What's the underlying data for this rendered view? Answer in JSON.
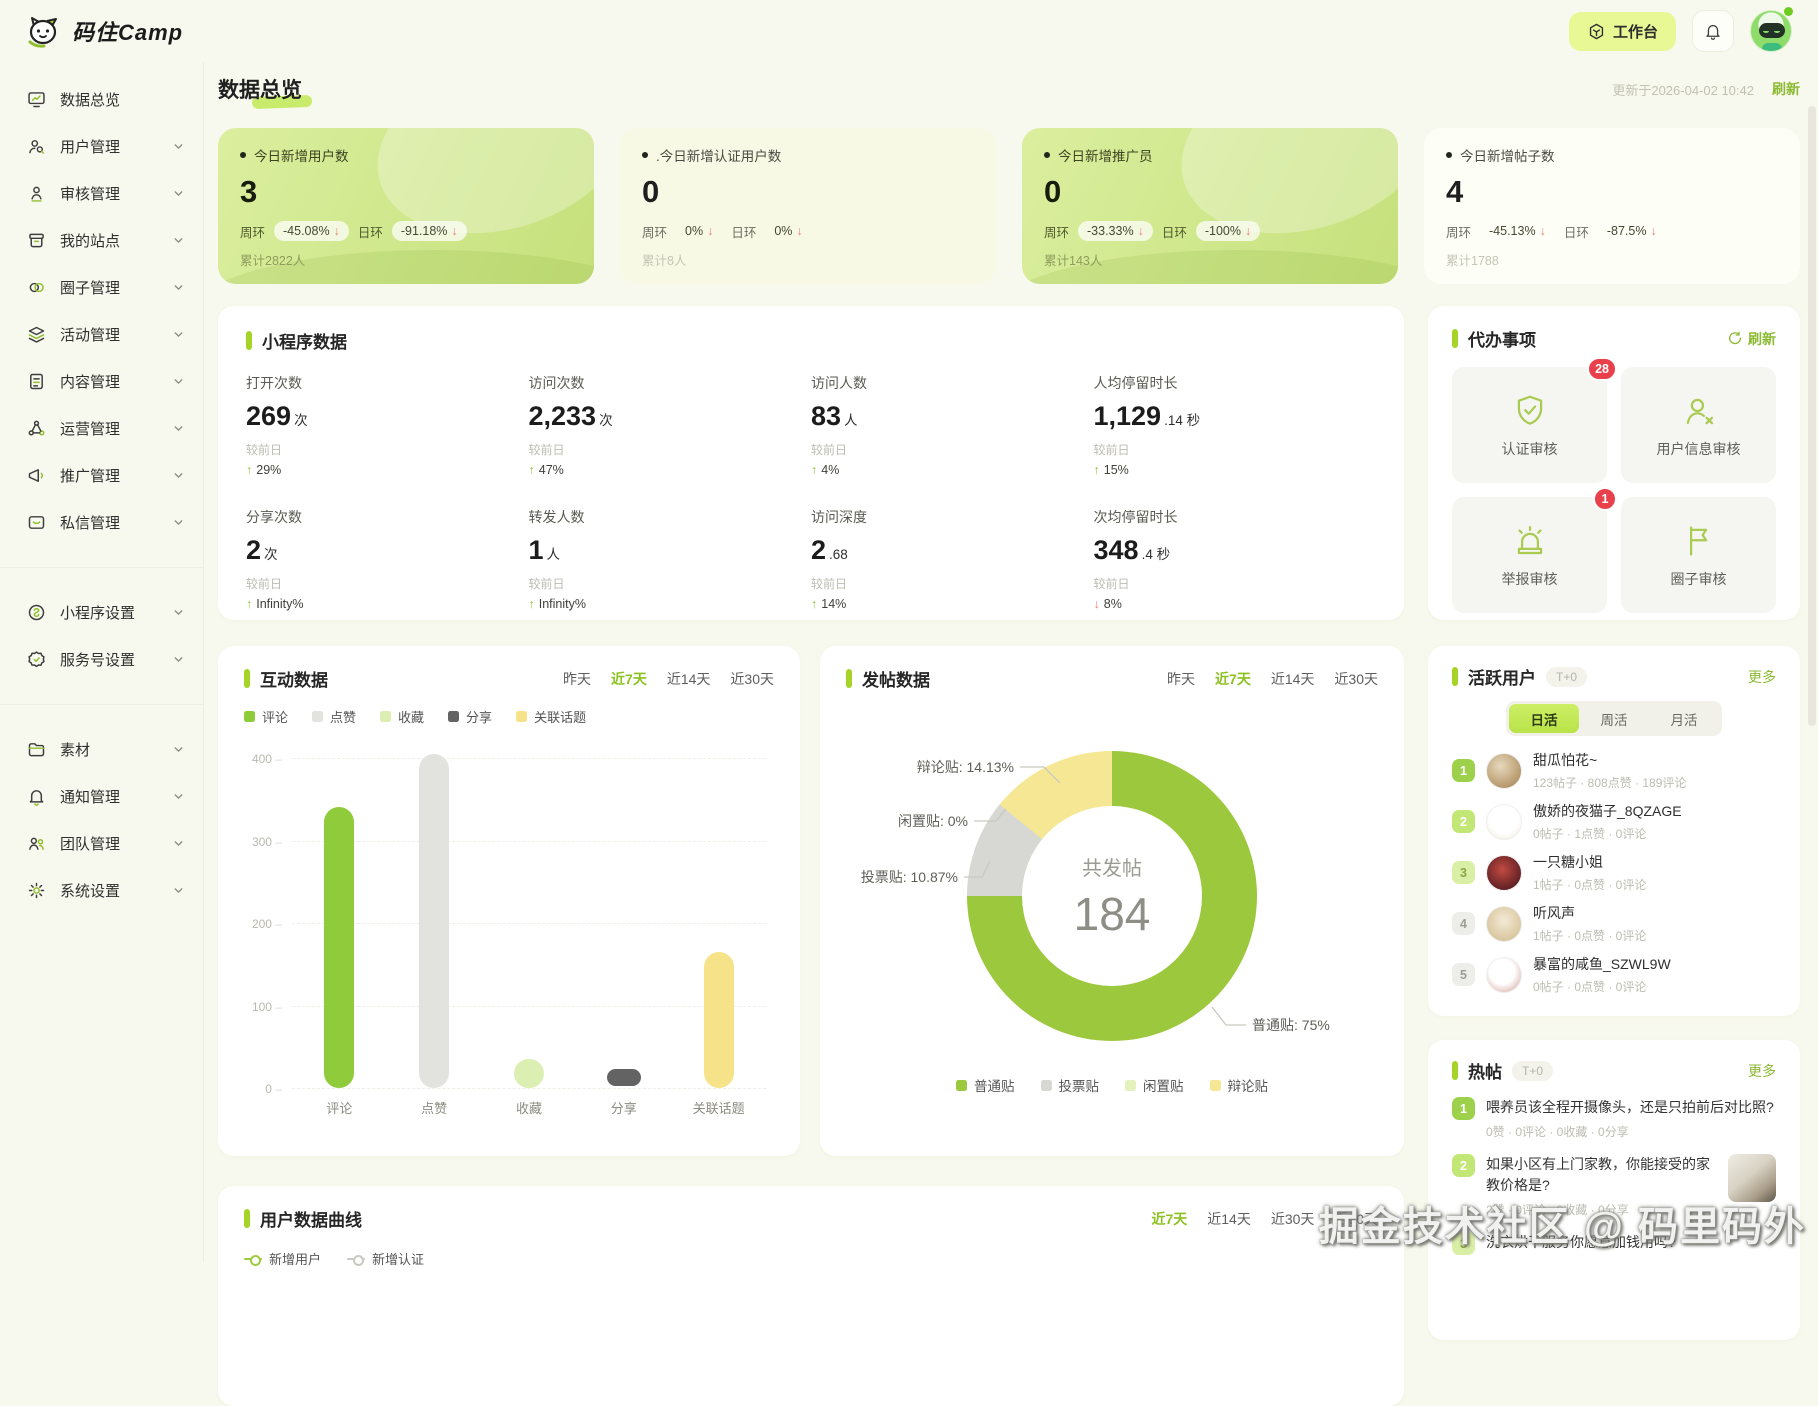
{
  "brand": {
    "name": "码住Camp"
  },
  "header": {
    "workspace_button": "工作台",
    "updated": "更新于2026-04-02 10:42",
    "refresh": "刷新"
  },
  "page_title": "数据总览",
  "sidebar": {
    "groups": [
      {
        "items": [
          {
            "label": "数据总览"
          },
          {
            "label": "用户管理"
          },
          {
            "label": "审核管理"
          },
          {
            "label": "我的站点"
          },
          {
            "label": "圈子管理"
          },
          {
            "label": "活动管理"
          },
          {
            "label": "内容管理"
          },
          {
            "label": "运营管理"
          },
          {
            "label": "推广管理"
          },
          {
            "label": "私信管理"
          }
        ]
      },
      {
        "items": [
          {
            "label": "小程序设置"
          },
          {
            "label": "服务号设置"
          }
        ]
      },
      {
        "items": [
          {
            "label": "素材"
          },
          {
            "label": "通知管理"
          },
          {
            "label": "团队管理"
          },
          {
            "label": "系统设置"
          }
        ]
      }
    ]
  },
  "stat_cards": [
    {
      "label": "今日新增用户数",
      "value": "3",
      "week_label": "周环",
      "week": "-45.08%",
      "day_label": "日环",
      "day": "-91.18%",
      "total": "累计2822人"
    },
    {
      "label": ".今日新增认证用户数",
      "value": "0",
      "week_label": "周环",
      "week": "0%",
      "day_label": "日环",
      "day": "0%",
      "total": "累计8人"
    },
    {
      "label": "今日新增推广员",
      "value": "0",
      "week_label": "周环",
      "week": "-33.33%",
      "day_label": "日环",
      "day": "-100%",
      "total": "累计143人"
    },
    {
      "label": "今日新增帖子数",
      "value": "4",
      "week_label": "周环",
      "week": "-45.13%",
      "day_label": "日环",
      "day": "-87.5%",
      "total": "累计1788"
    }
  ],
  "miniapp": {
    "title": "小程序数据",
    "compare_label": "较前日",
    "metrics": [
      {
        "label": "打开次数",
        "big": "269",
        "small": "次",
        "change": "29%",
        "dir": "up"
      },
      {
        "label": "访问次数",
        "big": "2,233",
        "small": "次",
        "change": "47%",
        "dir": "up"
      },
      {
        "label": "访问人数",
        "big": "83",
        "small": "人",
        "change": "4%",
        "dir": "up"
      },
      {
        "label": "人均停留时长",
        "big": "1,129",
        "small": ".14 秒",
        "change": "15%",
        "dir": "up"
      },
      {
        "label": "分享次数",
        "big": "2",
        "small": "次",
        "change": "Infinity%",
        "dir": "up"
      },
      {
        "label": "转发人数",
        "big": "1",
        "small": "人",
        "change": "Infinity%",
        "dir": "up"
      },
      {
        "label": "访问深度",
        "big": "2",
        "small": ".68",
        "change": "14%",
        "dir": "up"
      },
      {
        "label": "次均停留时长",
        "big": "348",
        "small": ".4 秒",
        "change": "8%",
        "dir": "down"
      }
    ]
  },
  "todo": {
    "title": "代办事项",
    "refresh": "刷新",
    "items": [
      {
        "label": "认证审核",
        "badge": "28",
        "icon": "shield-check-icon"
      },
      {
        "label": "用户信息审核",
        "badge": "",
        "icon": "user-audit-icon"
      },
      {
        "label": "举报审核",
        "badge": "1",
        "icon": "alarm-icon"
      },
      {
        "label": "圈子审核",
        "badge": "",
        "icon": "flag-icon"
      }
    ]
  },
  "interaction": {
    "title": "互动数据",
    "tabs": [
      "昨天",
      "近7天",
      "近14天",
      "近30天"
    ],
    "active_tab": "近7天"
  },
  "posts_panel": {
    "title": "发帖数据",
    "tabs": [
      "昨天",
      "近7天",
      "近14天",
      "近30天"
    ],
    "active_tab": "近7天",
    "center_label": "共发帖",
    "center_value": "184",
    "callouts": [
      "辩论贴: 14.13%",
      "闲置贴: 0%",
      "投票贴: 10.87%",
      "普通贴: 75%"
    ]
  },
  "active_users": {
    "title": "活跃用户",
    "badge": "T+0",
    "more": "更多",
    "tabs": [
      "日活",
      "周活",
      "月活"
    ],
    "active_tab": "日活",
    "users": [
      {
        "rank": "1",
        "name": "甜瓜怕花~",
        "stats": "123帖子 · 808点赞 · 189评论"
      },
      {
        "rank": "2",
        "name": "傲娇的夜猫子_8QZAGE",
        "stats": "0帖子 · 1点赞 · 0评论"
      },
      {
        "rank": "3",
        "name": "一只糖小姐",
        "stats": "1帖子 · 0点赞 · 0评论"
      },
      {
        "rank": "4",
        "name": "听风声",
        "stats": "1帖子 · 0点赞 · 0评论"
      },
      {
        "rank": "5",
        "name": "暴富的咸鱼_SZWL9W",
        "stats": "0帖子 · 0点赞 · 0评论"
      }
    ]
  },
  "hot_posts": {
    "title": "热帖",
    "badge": "T+0",
    "more": "更多",
    "posts": [
      {
        "rank": "1",
        "title": "喂养员该全程开摄像头，还是只拍前后对比照?",
        "stats": "0赞 · 0评论 · 0收藏 · 0分享"
      },
      {
        "rank": "2",
        "title": "如果小区有上门家教，你能接受的家教价格是?",
        "stats": "2赞 · 0评论 · 0收藏 · 0分享"
      },
      {
        "rank": "3",
        "title": "洗衣烘干服务你愿意加钱用吗?",
        "stats": ""
      }
    ]
  },
  "user_curve": {
    "title": "用户数据曲线",
    "tabs": [
      "近7天",
      "近14天",
      "近30天",
      "近90天"
    ],
    "active_tab": "近7天",
    "legend": [
      "新增用户",
      "新增认证"
    ]
  },
  "watermark": "掘金技术社区 @ 码里码外",
  "colors": {
    "accent_green": "#8cc21f",
    "pale_button_green": "#e7f895",
    "badge_red": "#e8414b",
    "up_green": "#8cc63f",
    "down_red": "#ef7b7b"
  },
  "chart_data": [
    {
      "type": "bar",
      "title": "互动数据",
      "categories": [
        "评论",
        "点赞",
        "收藏",
        "分享",
        "关联话题"
      ],
      "values": [
        340,
        405,
        35,
        20,
        165
      ],
      "colors": [
        "#8fcb3a",
        "#e2e2de",
        "#dcefb2",
        "#636363",
        "#f6e289"
      ],
      "ylim": [
        0,
        400
      ],
      "yticks": [
        0,
        100,
        200,
        300,
        400
      ],
      "grid": true,
      "legend_position": "top"
    },
    {
      "type": "pie",
      "title": "发帖数据",
      "labels": [
        "普通贴",
        "投票贴",
        "闲置贴",
        "辩论贴"
      ],
      "values": [
        75,
        10.87,
        0,
        14.13
      ],
      "colors": [
        "#9cc83e",
        "#d7d7d3",
        "#e3f2bd",
        "#f6e794"
      ],
      "center_label": "共发帖",
      "center_value": 184,
      "legend_position": "bottom"
    },
    {
      "type": "line",
      "title": "用户数据曲线",
      "series": [
        {
          "name": "新增用户"
        },
        {
          "name": "新增认证"
        }
      ],
      "series_colors": [
        "#9ccd3c",
        "#c9c9c2"
      ],
      "note_visible_portion": "panel clipped at bottom of viewport"
    }
  ]
}
